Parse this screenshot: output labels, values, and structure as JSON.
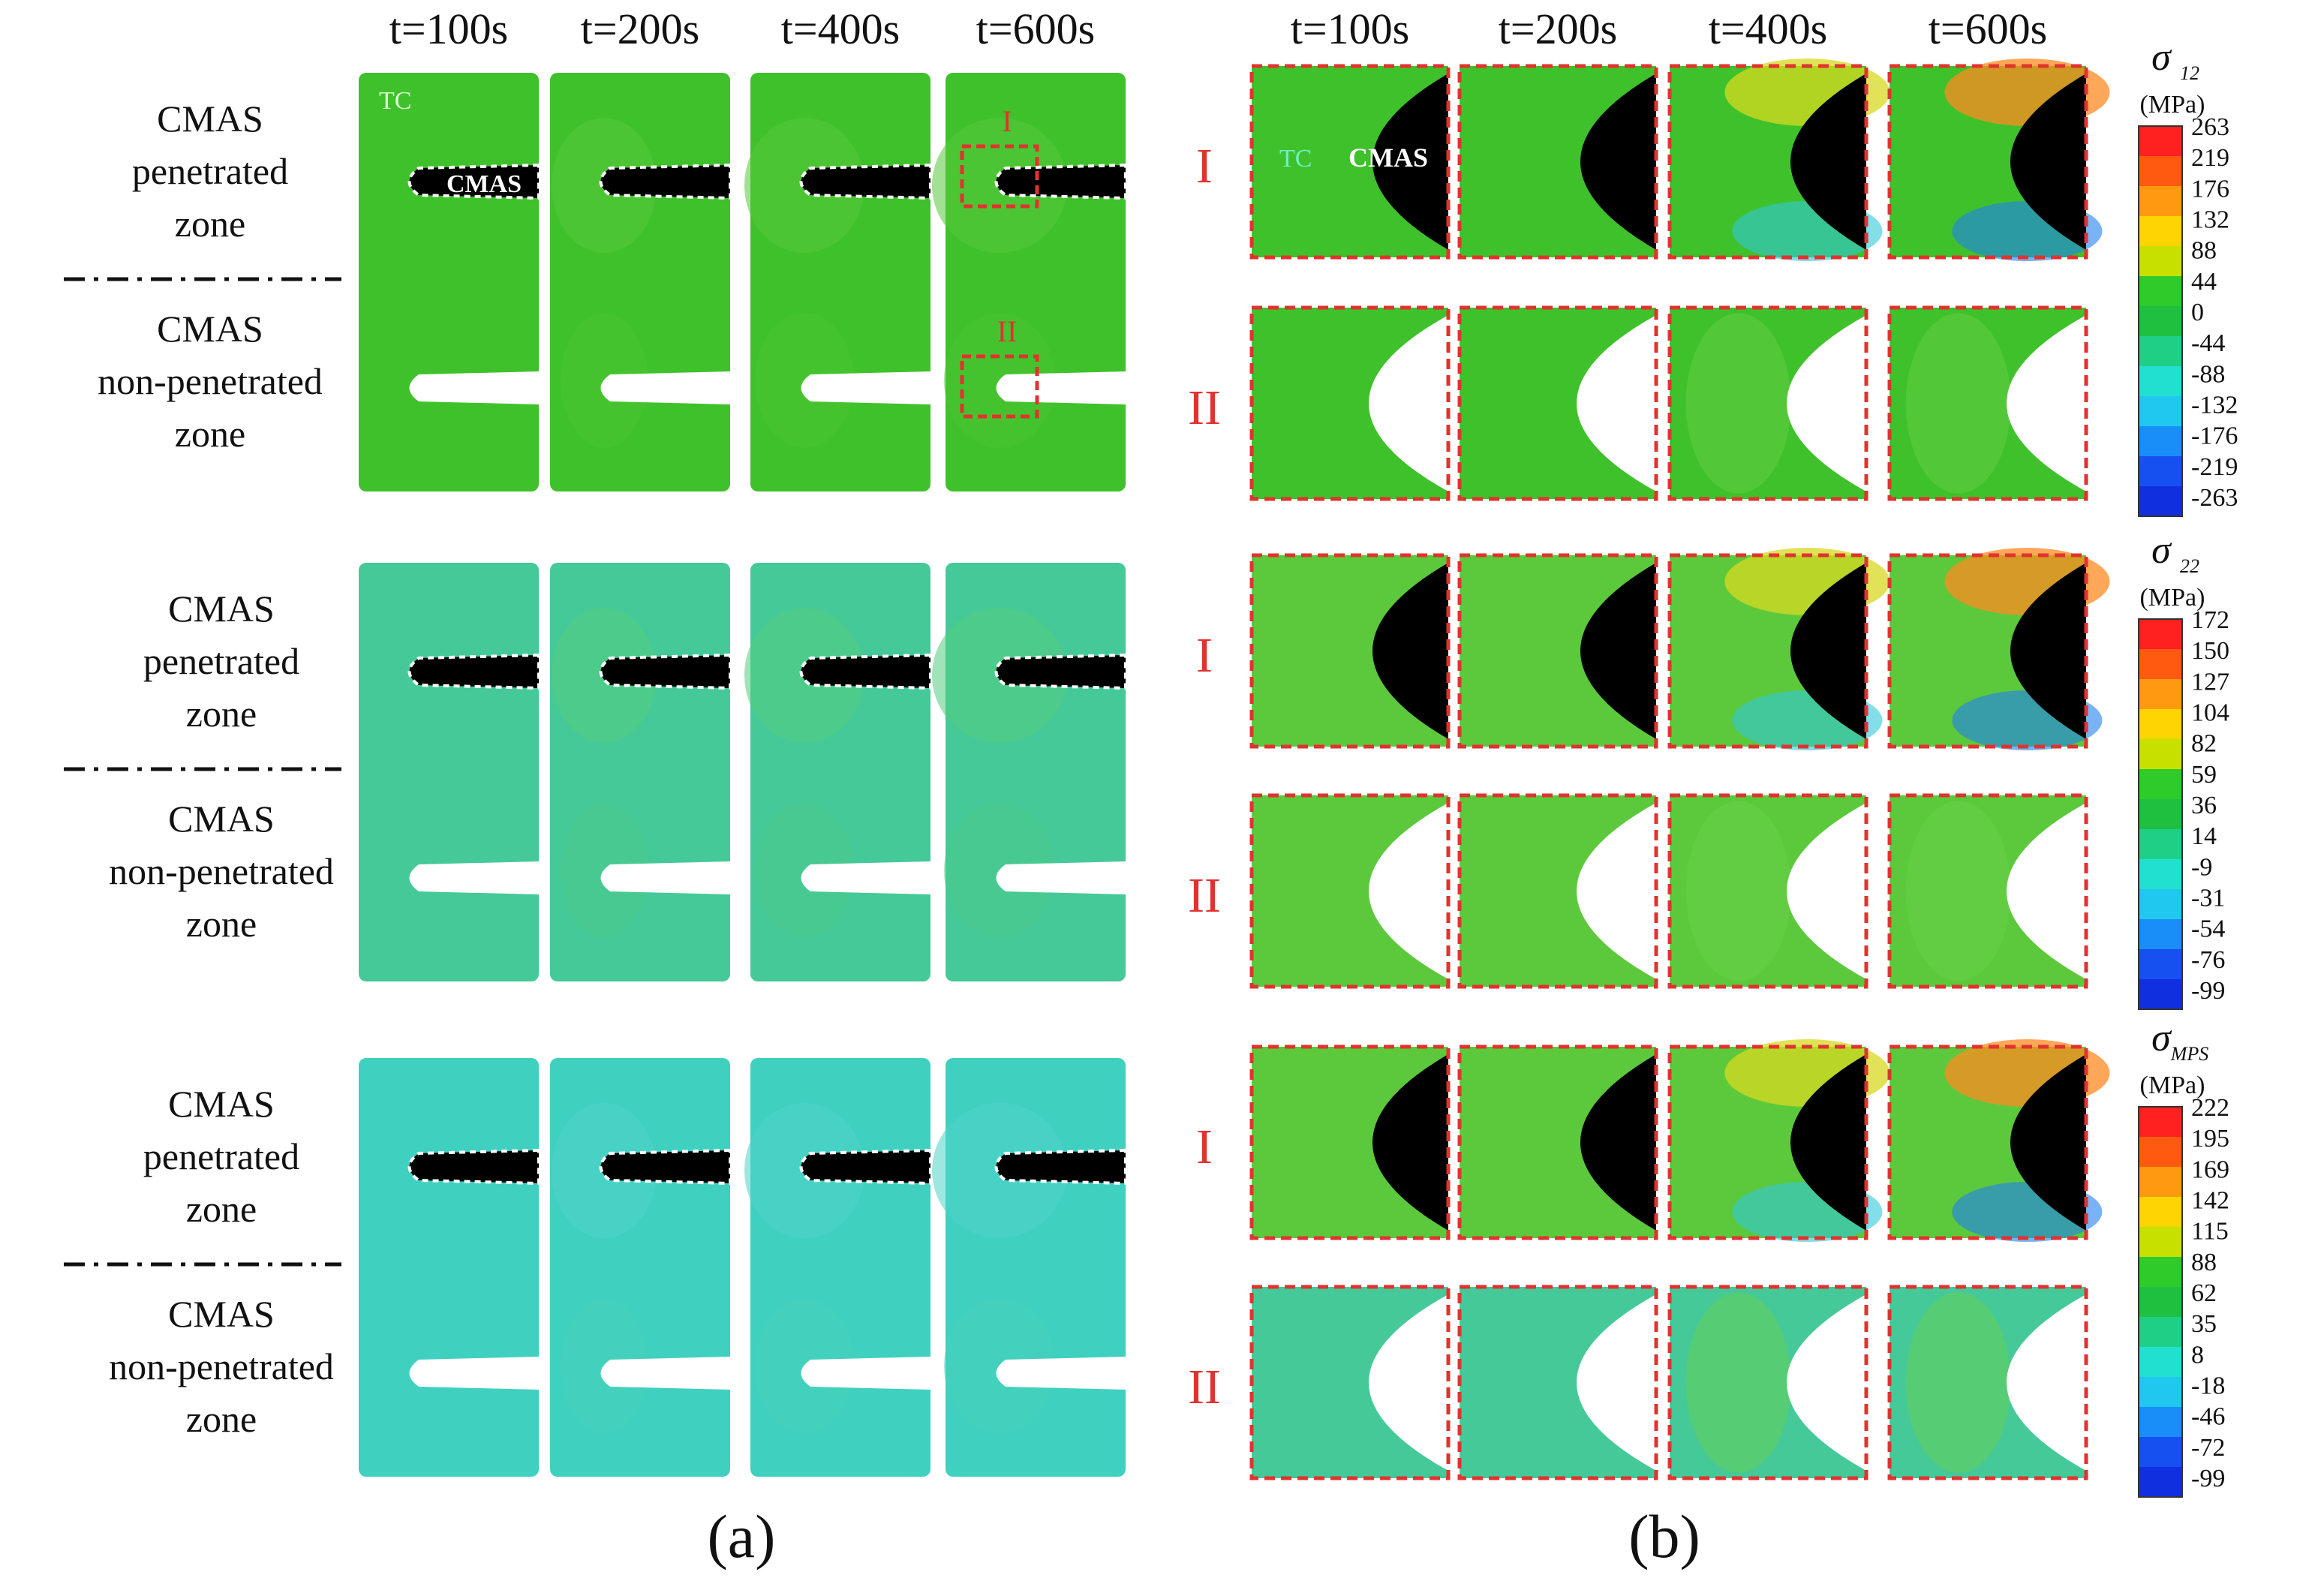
{
  "title": "CMAS penetrated vs non-penetrated zone stress contours",
  "panel_a": {
    "label": "(a)",
    "times": [
      "t=100s",
      "t=200s",
      "t=400s",
      "t=600s"
    ],
    "zone_penetrated": [
      "CMAS",
      "penetrated",
      "zone"
    ],
    "zone_nonpenetrated": [
      "CMAS",
      "non-penetrated",
      "zone"
    ],
    "tc_label": "TC",
    "cmas_label": "CMAS",
    "box_labels": [
      "I",
      "II"
    ]
  },
  "panel_b": {
    "label": "(b)",
    "times": [
      "t=100s",
      "t=200s",
      "t=400s",
      "t=600s"
    ],
    "row_labels": [
      "I",
      "II"
    ],
    "tc_label": "TC",
    "cmas_label": "CMAS"
  },
  "colorbars": [
    {
      "symbol": "σ",
      "subscript": "12",
      "unit": "(MPa)",
      "ticks": [
        "263",
        "219",
        "176",
        "132",
        "88",
        "44",
        "0",
        "-44",
        "-88",
        "-132",
        "-176",
        "-219",
        "-263"
      ]
    },
    {
      "symbol": "σ",
      "subscript": "22",
      "unit": "(MPa)",
      "ticks": [
        "172",
        "150",
        "127",
        "104",
        "82",
        "59",
        "36",
        "14",
        "-9",
        "-31",
        "-54",
        "-76",
        "-99"
      ]
    },
    {
      "symbol": "σ",
      "subscript": "MPS",
      "unit": "(MPa)",
      "ticks": [
        "222",
        "195",
        "169",
        "142",
        "115",
        "88",
        "62",
        "35",
        "8",
        "-18",
        "-46",
        "-72",
        "-99"
      ]
    }
  ],
  "colors": {
    "green": "#3fc12b",
    "green2": "#5cc93c",
    "teal": "#45c998",
    "cyan": "#3fd0c0",
    "black": "#000000",
    "red_dash": "#e0332f",
    "colorbar": [
      "#ff2020",
      "#ff5a10",
      "#ff9a10",
      "#ffd400",
      "#c8e000",
      "#2fcb2a",
      "#1fc040",
      "#1fcf86",
      "#20e0d0",
      "#20c8f0",
      "#1a8ef8",
      "#1650f0",
      "#1030e0"
    ]
  }
}
